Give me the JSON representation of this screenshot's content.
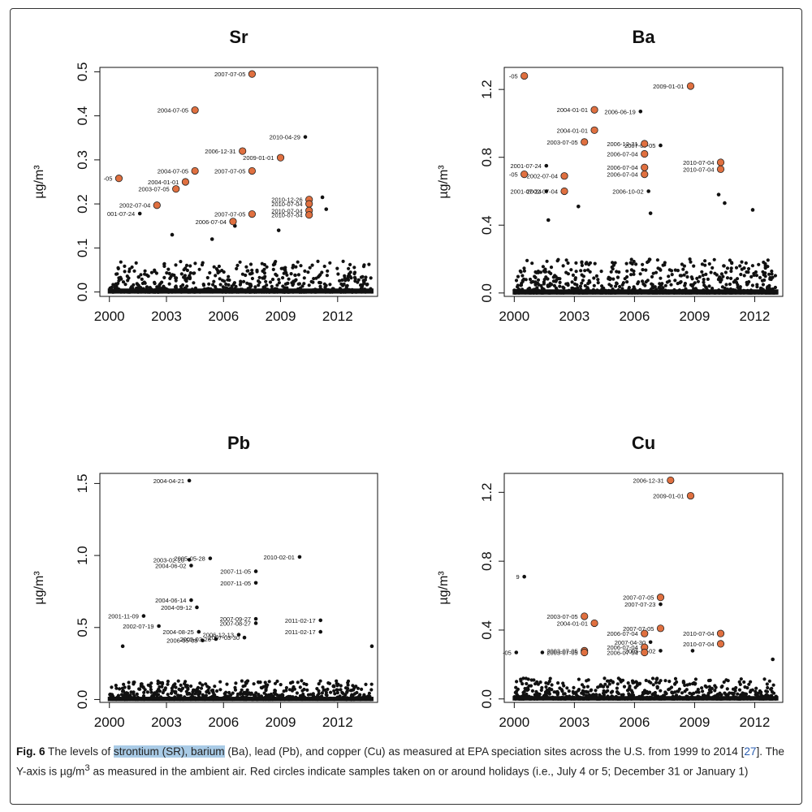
{
  "figure": {
    "label": "Fig. 6",
    "caption": {
      "part1": " The levels of ",
      "highlighted": "strontium (SR), barium",
      "part2": " (Ba), lead (Pb), and copper (Cu) as measured at EPA speciation sites across the U.S. from 1999 to 2014 [",
      "ref": "27",
      "part3": "]. The Y-axis is µg/m",
      "sup": "3",
      "part4": " as measured in the ambient air. Red circles indicate samples taken on or around holidays (i.e., July 4 or 5; December 31 or January 1)"
    }
  },
  "colors": {
    "holiday": "#e07040",
    "point": "#111111",
    "axis": "#111111"
  },
  "chart_data": [
    {
      "type": "scatter",
      "title": "Sr",
      "ylabel": "µg/m³",
      "xlim": [
        1999.5,
        2014.1
      ],
      "ylim": [
        -0.01,
        0.51
      ],
      "x_ticks": [
        2000,
        2003,
        2006,
        2009,
        2012
      ],
      "y_ticks": [
        0.0,
        0.1,
        0.2,
        0.3,
        0.4,
        0.5
      ],
      "y_tick_labels": [
        "0.0",
        "0.1",
        "0.2",
        "0.3",
        "0.4",
        "0.5"
      ],
      "background_max": 0.07,
      "holiday_points": [
        {
          "x": 2007.5,
          "y": 0.495,
          "label": "2007-07-05"
        },
        {
          "x": 2004.5,
          "y": 0.413,
          "label": "2004-07-05"
        },
        {
          "x": 2007.0,
          "y": 0.32,
          "label": "2006-12-31"
        },
        {
          "x": 2009.0,
          "y": 0.305,
          "label": "2009-01-01"
        },
        {
          "x": 2004.5,
          "y": 0.275,
          "label": "2004-07-05"
        },
        {
          "x": 2007.5,
          "y": 0.275,
          "label": "2007-07-05"
        },
        {
          "x": 2000.5,
          "y": 0.258,
          "label": "-05"
        },
        {
          "x": 2004.0,
          "y": 0.25,
          "label": "2004-01-01"
        },
        {
          "x": 2003.5,
          "y": 0.234,
          "label": "2003-07-05"
        },
        {
          "x": 2002.5,
          "y": 0.197,
          "label": "2002-07-04"
        },
        {
          "x": 2010.5,
          "y": 0.21,
          "label": "2010-12-26"
        },
        {
          "x": 2010.5,
          "y": 0.2,
          "label": "2010-07-04"
        },
        {
          "x": 2010.5,
          "y": 0.185,
          "label": "2010-07-04"
        },
        {
          "x": 2010.5,
          "y": 0.175,
          "label": "2010-07-04"
        },
        {
          "x": 2007.5,
          "y": 0.177,
          "label": "2007-07-05"
        },
        {
          "x": 2006.5,
          "y": 0.16,
          "label": "2006-07-04"
        }
      ],
      "outlier_points": [
        {
          "x": 2010.3,
          "y": 0.352,
          "label": "2010-04-29"
        },
        {
          "x": 2001.6,
          "y": 0.178,
          "label": "001-07-24"
        },
        {
          "x": 2011.2,
          "y": 0.215,
          "label": ""
        },
        {
          "x": 2011.4,
          "y": 0.188,
          "label": ""
        },
        {
          "x": 2006.6,
          "y": 0.15,
          "label": ""
        },
        {
          "x": 2008.9,
          "y": 0.14,
          "label": ""
        },
        {
          "x": 2003.3,
          "y": 0.13,
          "label": ""
        },
        {
          "x": 2005.4,
          "y": 0.12,
          "label": ""
        }
      ]
    },
    {
      "type": "scatter",
      "title": "Ba",
      "ylabel": "µg/m³",
      "xlim": [
        1999.5,
        2013.4
      ],
      "ylim": [
        -0.02,
        1.33
      ],
      "x_ticks": [
        2000,
        2003,
        2006,
        2009,
        2012
      ],
      "y_ticks": [
        0.0,
        0.4,
        0.8,
        1.2
      ],
      "y_tick_labels": [
        "0.0",
        "0.4",
        "0.8",
        "1.2"
      ],
      "background_max": 0.2,
      "holiday_points": [
        {
          "x": 2000.5,
          "y": 1.28,
          "label": "-05"
        },
        {
          "x": 2008.8,
          "y": 1.22,
          "label": "2009-01-01"
        },
        {
          "x": 2004.0,
          "y": 1.08,
          "label": "2004-01-01"
        },
        {
          "x": 2004.0,
          "y": 0.96,
          "label": "2004-01-01"
        },
        {
          "x": 2003.5,
          "y": 0.89,
          "label": "2003-07-05"
        },
        {
          "x": 2006.5,
          "y": 0.88,
          "label": "2006-12-31"
        },
        {
          "x": 2006.5,
          "y": 0.82,
          "label": "2006-07-04"
        },
        {
          "x": 2010.3,
          "y": 0.77,
          "label": "2010-07-04"
        },
        {
          "x": 2010.3,
          "y": 0.73,
          "label": "2010-07-04"
        },
        {
          "x": 2006.5,
          "y": 0.74,
          "label": "2006-07-04"
        },
        {
          "x": 2006.5,
          "y": 0.7,
          "label": "2006-07-04"
        },
        {
          "x": 2000.5,
          "y": 0.7,
          "label": "-05"
        },
        {
          "x": 2002.5,
          "y": 0.69,
          "label": "2002-07-04"
        },
        {
          "x": 2002.5,
          "y": 0.6,
          "label": "2002-07-04"
        }
      ],
      "outlier_points": [
        {
          "x": 2006.3,
          "y": 1.07,
          "label": "2006-06-19"
        },
        {
          "x": 2007.3,
          "y": 0.87,
          "label": "2007-07-05"
        },
        {
          "x": 2001.6,
          "y": 0.75,
          "label": "2001-07-24"
        },
        {
          "x": 2001.6,
          "y": 0.6,
          "label": "2001-07-24"
        },
        {
          "x": 2006.7,
          "y": 0.6,
          "label": "2006-10-02"
        },
        {
          "x": 2010.2,
          "y": 0.58,
          "label": ""
        },
        {
          "x": 2010.5,
          "y": 0.53,
          "label": ""
        },
        {
          "x": 2011.9,
          "y": 0.49,
          "label": ""
        },
        {
          "x": 2003.2,
          "y": 0.51,
          "label": ""
        },
        {
          "x": 2006.8,
          "y": 0.47,
          "label": ""
        },
        {
          "x": 2001.7,
          "y": 0.43,
          "label": ""
        }
      ]
    },
    {
      "type": "scatter",
      "title": "Pb",
      "ylabel": "µg/m³",
      "xlim": [
        1999.5,
        2014.1
      ],
      "ylim": [
        -0.02,
        1.57
      ],
      "x_ticks": [
        2000,
        2003,
        2006,
        2009,
        2012
      ],
      "y_ticks": [
        0.0,
        0.5,
        1.0,
        1.5
      ],
      "y_tick_labels": [
        "0.0",
        "0.5",
        "1.0",
        "1.5"
      ],
      "background_max": 0.13,
      "holiday_points": [],
      "outlier_points": [
        {
          "x": 2004.2,
          "y": 1.52,
          "label": "2004-04-21"
        },
        {
          "x": 2005.3,
          "y": 0.98,
          "label": "2005-05-28"
        },
        {
          "x": 2004.2,
          "y": 0.97,
          "label": "2003-02-20"
        },
        {
          "x": 2010.0,
          "y": 0.99,
          "label": "2010-02-01"
        },
        {
          "x": 2004.3,
          "y": 0.93,
          "label": "2004-06-02"
        },
        {
          "x": 2007.7,
          "y": 0.89,
          "label": "2007-11-05"
        },
        {
          "x": 2007.7,
          "y": 0.81,
          "label": "2007-11-05"
        },
        {
          "x": 2004.3,
          "y": 0.69,
          "label": "2004-06-14"
        },
        {
          "x": 2004.6,
          "y": 0.64,
          "label": "2004-09-12"
        },
        {
          "x": 2001.8,
          "y": 0.58,
          "label": "2001-11-09"
        },
        {
          "x": 2007.7,
          "y": 0.56,
          "label": "2007-09-27"
        },
        {
          "x": 2007.7,
          "y": 0.53,
          "label": "2007-08-27"
        },
        {
          "x": 2011.1,
          "y": 0.55,
          "label": "2011-02-17"
        },
        {
          "x": 2002.6,
          "y": 0.51,
          "label": "2002-07-19"
        },
        {
          "x": 2011.1,
          "y": 0.47,
          "label": "2011-02-17"
        },
        {
          "x": 2004.7,
          "y": 0.47,
          "label": "2004-08-25"
        },
        {
          "x": 2006.8,
          "y": 0.45,
          "label": "2006-12-13"
        },
        {
          "x": 2005.6,
          "y": 0.42,
          "label": "2005-03-26"
        },
        {
          "x": 2007.1,
          "y": 0.43,
          "label": "2007-03-30"
        },
        {
          "x": 2004.9,
          "y": 0.41,
          "label": "2006-05-08"
        },
        {
          "x": 2013.8,
          "y": 0.37,
          "label": ""
        },
        {
          "x": 2000.7,
          "y": 0.37,
          "label": ""
        }
      ]
    },
    {
      "type": "scatter",
      "title": "Cu",
      "ylabel": "µg/m³",
      "xlim": [
        1999.5,
        2013.4
      ],
      "ylim": [
        -0.02,
        1.31
      ],
      "x_ticks": [
        2000,
        2003,
        2006,
        2009,
        2012
      ],
      "y_ticks": [
        0.0,
        0.4,
        0.8,
        1.2
      ],
      "y_tick_labels": [
        "0.0",
        "0.4",
        "0.8",
        "1.2"
      ],
      "background_max": 0.12,
      "holiday_points": [
        {
          "x": 2007.8,
          "y": 1.27,
          "label": "2006-12-31"
        },
        {
          "x": 2008.8,
          "y": 1.18,
          "label": "2009-01-01"
        },
        {
          "x": 2007.3,
          "y": 0.59,
          "label": "2007-07-05"
        },
        {
          "x": 2003.5,
          "y": 0.48,
          "label": "2003-07-05"
        },
        {
          "x": 2004.0,
          "y": 0.44,
          "label": "2004-01-01"
        },
        {
          "x": 2007.3,
          "y": 0.41,
          "label": "2007-07-05"
        },
        {
          "x": 2006.5,
          "y": 0.38,
          "label": "2006-07-04"
        },
        {
          "x": 2010.3,
          "y": 0.38,
          "label": "2010-07-04"
        },
        {
          "x": 2010.3,
          "y": 0.32,
          "label": "2010-07-04"
        },
        {
          "x": 2006.5,
          "y": 0.3,
          "label": "2006-07-04"
        },
        {
          "x": 2006.5,
          "y": 0.27,
          "label": "2006-07-04"
        },
        {
          "x": 2003.5,
          "y": 0.28,
          "label": "2003-07-05"
        },
        {
          "x": 2003.5,
          "y": 0.27,
          "label": "2003-07-05"
        }
      ],
      "outlier_points": [
        {
          "x": 2000.5,
          "y": 0.71,
          "label": "9"
        },
        {
          "x": 2007.3,
          "y": 0.55,
          "label": "2007-07-23"
        },
        {
          "x": 2006.8,
          "y": 0.33,
          "label": "2007-04-30"
        },
        {
          "x": 2007.3,
          "y": 0.28,
          "label": "2005-11-02"
        },
        {
          "x": 2000.1,
          "y": 0.27,
          "label": "-05"
        },
        {
          "x": 2001.4,
          "y": 0.27,
          "label": ""
        },
        {
          "x": 2008.9,
          "y": 0.28,
          "label": ""
        },
        {
          "x": 2012.9,
          "y": 0.23,
          "label": ""
        }
      ]
    }
  ]
}
